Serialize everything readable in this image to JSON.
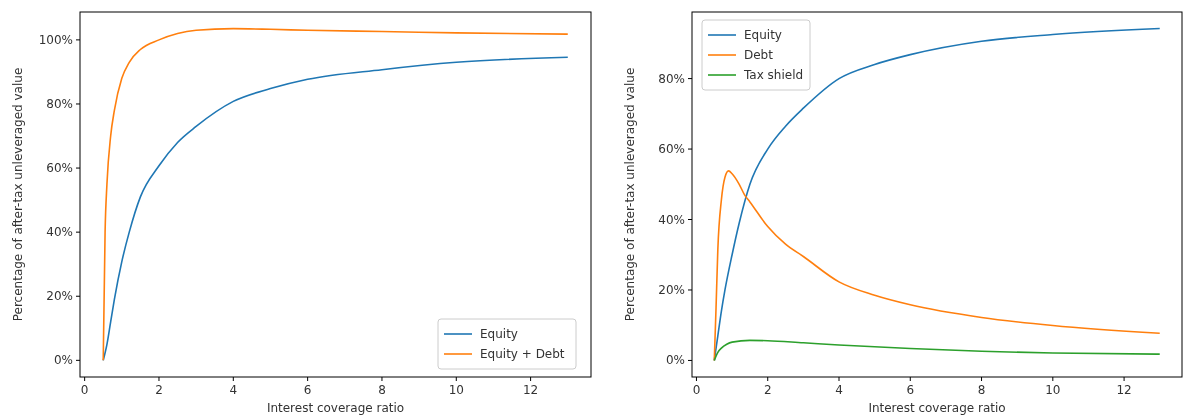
{
  "chart_data": [
    {
      "type": "line",
      "xlabel": "Interest coverage ratio",
      "ylabel": "Percentage of after-tax unleveraged value",
      "xlim": [
        -0.125,
        13.625
      ],
      "xticks": [
        0,
        2,
        4,
        6,
        8,
        10,
        12
      ],
      "ylim": [
        -5.2,
        108.7
      ],
      "yticks": [
        {
          "value": 0,
          "label": "0%"
        },
        {
          "value": 20,
          "label": "20%"
        },
        {
          "value": 40,
          "label": "40%"
        },
        {
          "value": 60,
          "label": "60%"
        },
        {
          "value": 80,
          "label": "80%"
        },
        {
          "value": 100,
          "label": "100%"
        }
      ],
      "legend": "bottom right",
      "grid": false,
      "marker": "none",
      "line_style": "solid",
      "series": [
        {
          "name": "Equity",
          "color": "#1f77b4",
          "x": [
            0.5,
            0.6,
            0.7,
            0.8,
            1,
            1.2,
            1.5,
            2,
            2.5,
            3,
            4,
            5,
            6,
            8,
            10,
            13
          ],
          "values": [
            0,
            5,
            12,
            19,
            30.8,
            40,
            51,
            60.7,
            68,
            73,
            80.8,
            84.8,
            87.7,
            90.7,
            93,
            94.6
          ]
        },
        {
          "name": "Equity + Debt",
          "color": "#ff7f0e",
          "x": [
            0.5,
            0.55,
            0.6,
            0.7,
            0.8,
            1,
            1.2,
            1.5,
            2,
            2.5,
            3,
            4,
            5,
            6,
            8,
            10,
            13
          ],
          "values": [
            0,
            40,
            55,
            70,
            78,
            88,
            93,
            97,
            100,
            102,
            103,
            103.5,
            103.3,
            103,
            102.6,
            102.2,
            101.8
          ]
        }
      ]
    },
    {
      "type": "line",
      "xlabel": "Interest coverage ratio",
      "ylabel": "Percentage of after-tax unleveraged value",
      "xlim": [
        -0.125,
        13.625
      ],
      "xticks": [
        0,
        2,
        4,
        6,
        8,
        10,
        12
      ],
      "ylim": [
        -4.7,
        98.9
      ],
      "yticks": [
        {
          "value": 0,
          "label": "0%"
        },
        {
          "value": 20,
          "label": "20%"
        },
        {
          "value": 40,
          "label": "40%"
        },
        {
          "value": 60,
          "label": "60%"
        },
        {
          "value": 80,
          "label": "80%"
        }
      ],
      "legend": "top left",
      "grid": false,
      "marker": "none",
      "line_style": "solid",
      "series": [
        {
          "name": "Equity",
          "color": "#1f77b4",
          "x": [
            0.5,
            0.6,
            0.7,
            0.8,
            1,
            1.2,
            1.5,
            2,
            2.5,
            3,
            4,
            5,
            6,
            8,
            10,
            13
          ],
          "values": [
            0,
            7,
            14,
            20,
            30,
            39,
            50,
            60,
            66.5,
            71.6,
            80,
            84,
            86.8,
            90.6,
            92.5,
            94.2
          ]
        },
        {
          "name": "Debt",
          "color": "#ff7f0e",
          "x": [
            0.5,
            0.55,
            0.6,
            0.7,
            0.8,
            0.9,
            1,
            1.2,
            1.35,
            1.5,
            2,
            2.5,
            3,
            4,
            5,
            6,
            8,
            10,
            13
          ],
          "values": [
            0,
            15,
            31.5,
            45.6,
            52,
            53.8,
            53,
            50,
            47,
            45,
            38,
            33,
            29.5,
            22.3,
            18.5,
            15.8,
            12.2,
            9.9,
            7.7
          ]
        },
        {
          "name": "Tax shield",
          "color": "#2ca02c",
          "x": [
            0.5,
            0.6,
            0.7,
            0.85,
            1,
            1.5,
            2,
            3,
            4,
            6,
            8,
            10,
            13
          ],
          "values": [
            0,
            2.3,
            3.5,
            4.6,
            5.2,
            5.7,
            5.6,
            5,
            4.4,
            3.4,
            2.6,
            2.1,
            1.8
          ]
        }
      ]
    }
  ]
}
